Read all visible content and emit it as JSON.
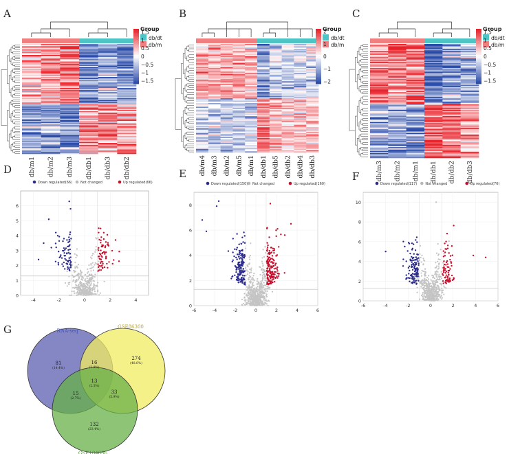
{
  "figure": {
    "panels": [
      "A",
      "B",
      "C",
      "D",
      "E",
      "F",
      "G"
    ]
  },
  "chart_data": [
    {
      "panel": "A",
      "type": "heatmap",
      "legend_title": "Group",
      "groups": [
        {
          "name": "db/dt",
          "color": "#4fc4c4"
        },
        {
          "name": "db/m",
          "color": "#f08080"
        }
      ],
      "samples": [
        "db/m1",
        "db/m2",
        "db/m3",
        "db/db1",
        "db/db3",
        "db/db2"
      ],
      "sample_groups": [
        "db/m",
        "db/m",
        "db/m",
        "db/dt",
        "db/dt",
        "db/dt"
      ],
      "color_scale": {
        "min": -1.7,
        "max": 1.7,
        "colors": [
          "#2a4ba8",
          "#ffffff",
          "#e8232b"
        ]
      },
      "scale_ticks": [
        1.5,
        1,
        0.5,
        0,
        -0.5,
        -1,
        -1.5
      ],
      "scale_tick_labels": [
        "1.5",
        "1",
        "0.5",
        "0",
        "−0.5",
        "−1",
        "−1.5"
      ],
      "row_clusters": [
        {
          "count": 55,
          "means": [
            0.5,
            0.7,
            1.1,
            -1.0,
            -0.8,
            -1.0
          ]
        },
        {
          "count": 45,
          "means": [
            -0.9,
            -0.8,
            -1.0,
            0.9,
            0.9,
            0.8
          ]
        }
      ]
    },
    {
      "panel": "B",
      "type": "heatmap",
      "legend_title": "Group",
      "groups": [
        {
          "name": "db/dt",
          "color": "#4fc4c4"
        },
        {
          "name": "db/m",
          "color": "#f08080"
        }
      ],
      "samples": [
        "db/m4",
        "db/m3",
        "db/m2",
        "db/m5",
        "db/m1",
        "db/db1",
        "db/db5",
        "db/db2",
        "db/db4",
        "db/db3"
      ],
      "sample_groups": [
        "db/m",
        "db/m",
        "db/m",
        "db/m",
        "db/m",
        "db/dt",
        "db/dt",
        "db/dt",
        "db/dt",
        "db/dt"
      ],
      "color_scale": {
        "min": -2.2,
        "max": 2.2,
        "colors": [
          "#2a4ba8",
          "#ffffff",
          "#e8232b"
        ]
      },
      "scale_ticks": [
        2,
        1,
        0,
        -1,
        -2
      ],
      "scale_tick_labels": [
        "2",
        "1",
        "0",
        "−1",
        "−2"
      ],
      "row_clusters": [
        {
          "count": 45,
          "means": [
            0.8,
            0.9,
            0.8,
            0.8,
            0.7,
            -1.3,
            -0.6,
            -0.5,
            -0.5,
            -0.4
          ]
        },
        {
          "count": 45,
          "means": [
            -0.6,
            -0.7,
            -0.7,
            -0.5,
            -0.6,
            1.3,
            0.7,
            0.6,
            0.6,
            0.5
          ]
        }
      ]
    },
    {
      "panel": "C",
      "type": "heatmap",
      "legend_title": "Group",
      "groups": [
        {
          "name": "db/dt",
          "color": "#4fc4c4"
        },
        {
          "name": "db/m",
          "color": "#f08080"
        }
      ],
      "samples": [
        "db/m3",
        "db/m2",
        "db/m1",
        "db/db1",
        "db/db2",
        "db/db3"
      ],
      "sample_groups": [
        "db/m",
        "db/m",
        "db/m",
        "db/dt",
        "db/dt",
        "db/dt"
      ],
      "color_scale": {
        "min": -1.7,
        "max": 1.7,
        "colors": [
          "#2a4ba8",
          "#ffffff",
          "#e8232b"
        ]
      },
      "scale_ticks": [
        1.5,
        1,
        0.5,
        0,
        -0.5,
        -1,
        -1.5
      ],
      "scale_tick_labels": [
        "1.5",
        "1",
        "0.5",
        "0",
        "−0.5",
        "−1",
        "−1.5"
      ],
      "row_clusters": [
        {
          "count": 50,
          "means": [
            1.0,
            1.0,
            0.9,
            -1.2,
            -0.8,
            -0.8
          ]
        },
        {
          "count": 45,
          "means": [
            -0.8,
            -0.8,
            -0.9,
            1.3,
            1.0,
            0.9
          ]
        }
      ]
    },
    {
      "panel": "D",
      "type": "scatter",
      "legend": [
        {
          "label": "Down regulated(66)",
          "color": "#2c2c8c"
        },
        {
          "label": "Not changed",
          "color": "#b8b8b8"
        },
        {
          "label": "Up regulated(66)",
          "color": "#c8102e"
        }
      ],
      "xlim": [
        -5,
        5
      ],
      "ylim": [
        0,
        7
      ],
      "xticks": [
        -4,
        -2,
        0,
        2,
        4
      ],
      "yticks": [
        0,
        1,
        2,
        3,
        4,
        5,
        6
      ],
      "hline": 1.3,
      "vlines": [
        -1,
        1
      ],
      "counts": {
        "down": 66,
        "up": 66,
        "not_changed": 420
      },
      "outliers": [
        [
          -1.2,
          6.3
        ],
        [
          -1.1,
          5.8
        ],
        [
          -3.2,
          3.5
        ],
        [
          -2.6,
          3.2
        ],
        [
          -2.8,
          5.1
        ],
        [
          -1.9,
          2.6
        ],
        [
          1.5,
          4.2
        ],
        [
          1.1,
          4.5
        ],
        [
          -3.6,
          2.4
        ],
        [
          -2.1,
          4.0
        ]
      ]
    },
    {
      "panel": "E",
      "type": "scatter",
      "legend": [
        {
          "label": "Down regulated(150)",
          "color": "#2c2c8c"
        },
        {
          "label": "Not changed",
          "color": "#b8b8b8"
        },
        {
          "label": "Up regulated(160)",
          "color": "#c8102e"
        }
      ],
      "xlim": [
        -6,
        6
      ],
      "ylim": [
        0,
        9
      ],
      "xticks": [
        -6,
        -4,
        -2,
        0,
        2,
        4,
        6
      ],
      "yticks": [
        0,
        2,
        4,
        6,
        8
      ],
      "hline": 1.3,
      "vlines": [
        -1,
        1
      ],
      "counts": {
        "down": 150,
        "up": 160,
        "not_changed": 620
      },
      "outliers": [
        [
          -3.6,
          8.3
        ],
        [
          -3.8,
          7.9
        ],
        [
          -5.2,
          6.8
        ],
        [
          -4.8,
          5.9
        ],
        [
          3.4,
          6.5
        ],
        [
          2.8,
          5.6
        ],
        [
          1.4,
          8.1
        ],
        [
          2.1,
          6.1
        ]
      ]
    },
    {
      "panel": "F",
      "type": "scatter",
      "legend": [
        {
          "label": "Down regulated(117)",
          "color": "#2c2c8c"
        },
        {
          "label": "Not changed",
          "color": "#b8b8b8"
        },
        {
          "label": "Up regulated(76)",
          "color": "#c8102e"
        }
      ],
      "xlim": [
        -6,
        6
      ],
      "ylim": [
        0,
        11
      ],
      "xticks": [
        -6,
        -4,
        -2,
        0,
        2,
        4,
        6
      ],
      "yticks": [
        0,
        2,
        4,
        6,
        8,
        10
      ],
      "hline": 1.3,
      "vlines": [
        -1,
        1
      ],
      "counts": {
        "down": 117,
        "up": 76,
        "not_changed": 520
      },
      "outliers": [
        [
          0.5,
          10.0
        ],
        [
          4.9,
          4.4
        ],
        [
          3.8,
          4.6
        ],
        [
          -4.0,
          5.0
        ],
        [
          -2.3,
          5.5
        ],
        [
          -1.6,
          5.3
        ]
      ]
    },
    {
      "panel": "G",
      "type": "venn",
      "sets": [
        {
          "name": "RNA-seq",
          "color": "#5b5fb0",
          "label_color": "#3e4eb8"
        },
        {
          "name": "GSE86300",
          "color": "#f2ec62",
          "label_color": "#b8a32a"
        },
        {
          "name": "GSE184836",
          "color": "#67b048",
          "label_color": "#4c8c35"
        }
      ],
      "regions": [
        {
          "id": "a",
          "count": "81",
          "pct": "(14.4%)"
        },
        {
          "id": "b",
          "count": "274",
          "pct": "(48.6%)"
        },
        {
          "id": "c",
          "count": "132",
          "pct": "(23.4%)"
        },
        {
          "id": "ab",
          "count": "16",
          "pct": "(2.8%)"
        },
        {
          "id": "ac",
          "count": "15",
          "pct": "(2.7%)"
        },
        {
          "id": "bc",
          "count": "33",
          "pct": "(5.9%)"
        },
        {
          "id": "abc",
          "count": "13",
          "pct": "(2.3%)"
        }
      ]
    }
  ]
}
